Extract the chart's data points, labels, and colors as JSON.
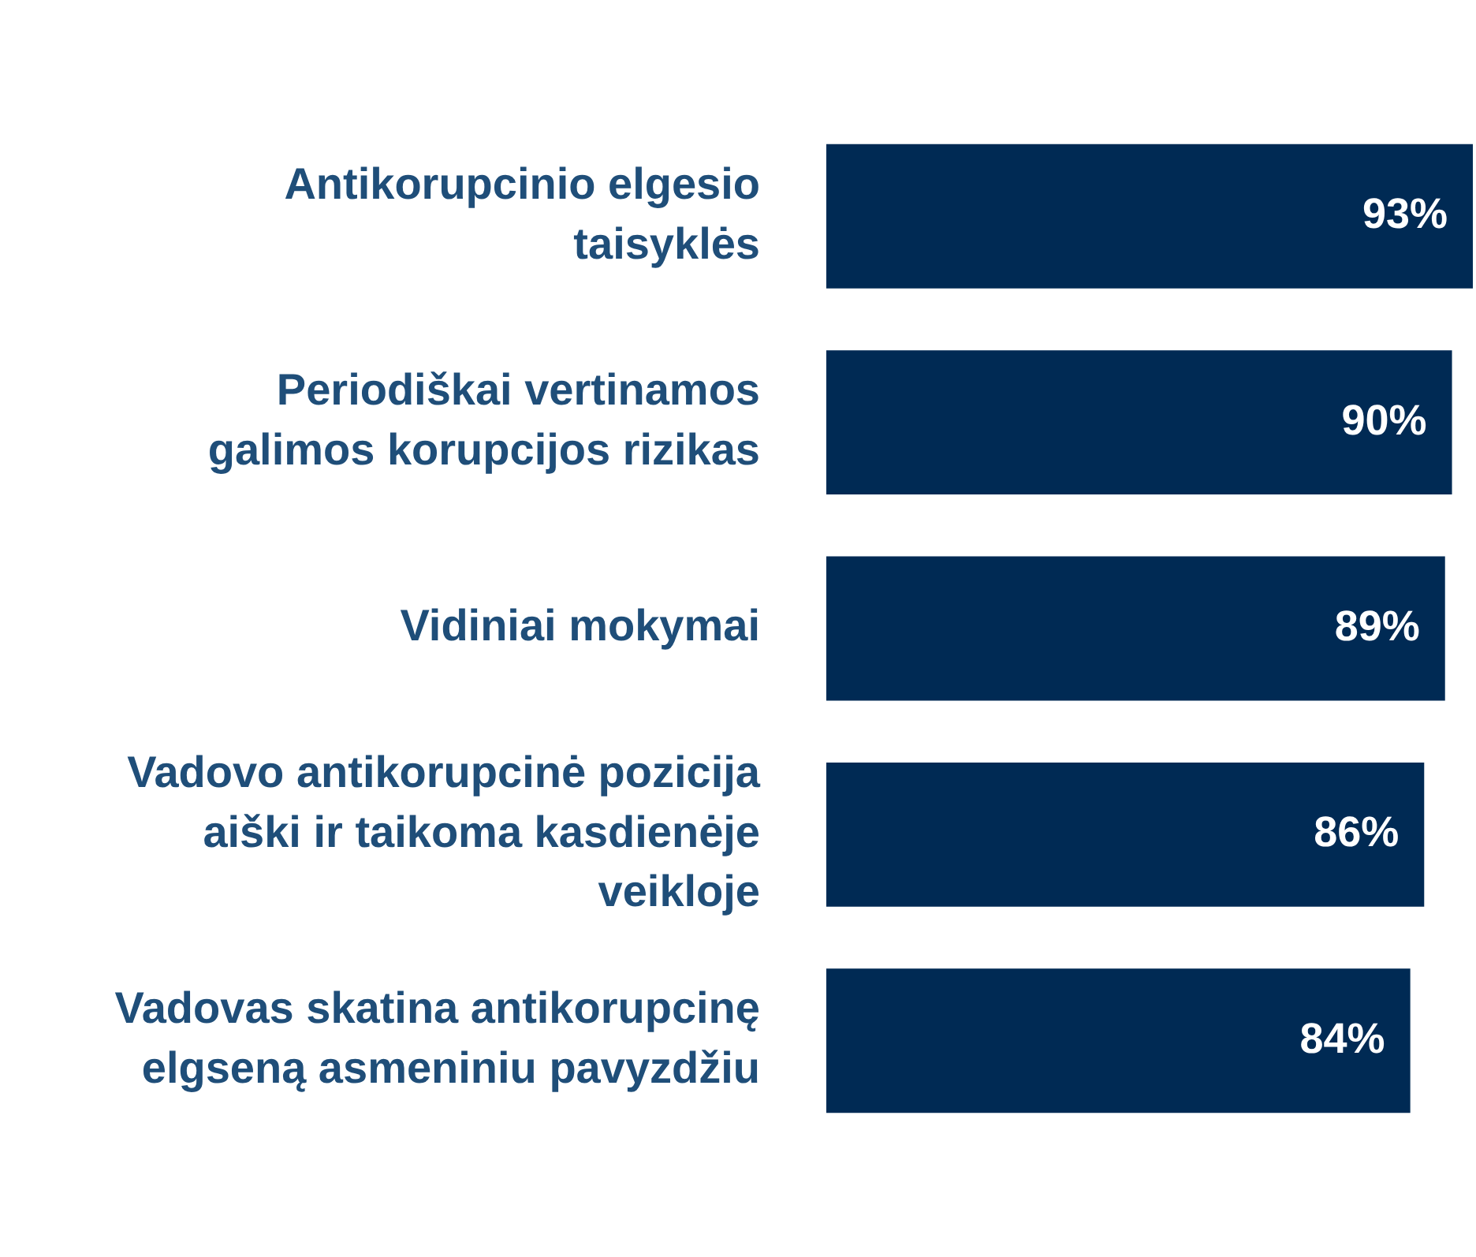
{
  "chart_data": {
    "type": "bar",
    "orientation": "horizontal",
    "categories": [
      "Antikorupcinio elgesio taisyklės",
      "Periodiškai vertinamos galimos korupcijos rizikas",
      "Vidiniai mokymai",
      "Vadovo antikorupcinė pozicija aiški ir taikoma kasdienėje veikloje",
      "Vadovas skatina antikorupcinę elgseną asmeniniu pavyzdžiu"
    ],
    "values": [
      93,
      90,
      89,
      86,
      84
    ],
    "value_labels": [
      "93%",
      "90%",
      "89%",
      "86%",
      "84%"
    ],
    "color": "#002a54",
    "xlim": [
      0,
      93
    ],
    "tick_labels": "y"
  }
}
